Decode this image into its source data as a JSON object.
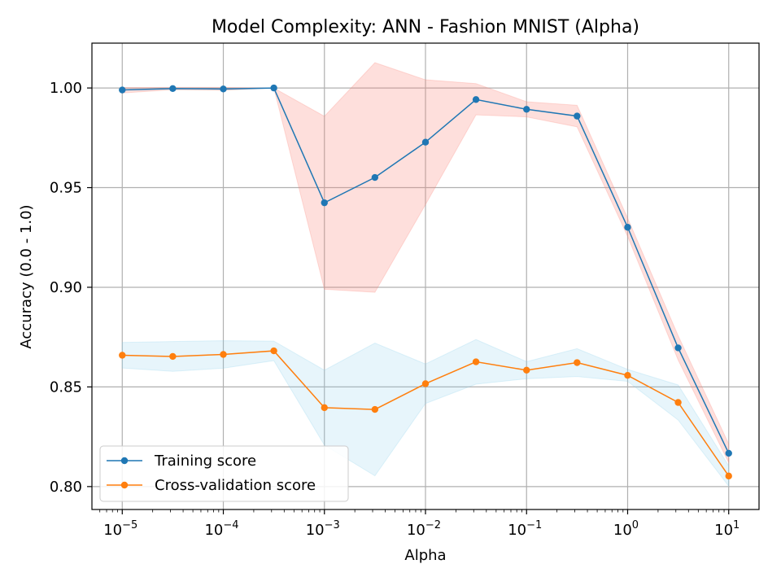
{
  "chart_data": {
    "type": "line",
    "title": "Model Complexity: ANN - Fashion MNIST (Alpha)",
    "xlabel": "Alpha",
    "ylabel": "Accuracy (0.0 - 1.0)",
    "x_scale": "log",
    "xlim_exp": [
      -5.3,
      1.3
    ],
    "ylim": [
      0.7885,
      1.0225
    ],
    "grid": true,
    "legend_position": "lower left",
    "x_tick_exponents": [
      "−5",
      "−4",
      "−3",
      "−2",
      "−1",
      "0",
      "1"
    ],
    "x_tick_base": "10",
    "y_ticks": [
      "0.80",
      "0.85",
      "0.90",
      "0.95",
      "1.00"
    ],
    "x": [
      1e-05,
      3.16e-05,
      0.0001,
      0.000316,
      0.001,
      0.00316,
      0.01,
      0.0316,
      0.1,
      0.316,
      1,
      3.16,
      10
    ],
    "series": [
      {
        "name": "Training score",
        "color": "#1f77b4",
        "band_color": "#fa8072",
        "values": [
          0.999,
          0.9997,
          0.9995,
          1.0,
          0.9424,
          0.9551,
          0.9728,
          0.9942,
          0.9893,
          0.9859,
          0.9301,
          0.8696,
          0.8167
        ],
        "band_low": [
          0.9975,
          0.9991,
          0.9988,
          1.0,
          0.899,
          0.8975,
          0.9415,
          0.9865,
          0.9855,
          0.9805,
          0.9255,
          0.8635,
          0.812
        ],
        "band_high": [
          1.0002,
          1.0003,
          1.0003,
          1.0,
          0.9858,
          1.0127,
          1.0041,
          1.0022,
          0.9931,
          0.9913,
          0.9347,
          0.8757,
          0.8214
        ]
      },
      {
        "name": "Cross-validation score",
        "color": "#ff7f0e",
        "band_color": "#87ceeb",
        "values": [
          0.8659,
          0.8653,
          0.8663,
          0.8681,
          0.8396,
          0.8387,
          0.8516,
          0.8626,
          0.8584,
          0.8622,
          0.8558,
          0.8422,
          0.8053
        ],
        "band_low": [
          0.8595,
          0.8578,
          0.8594,
          0.8632,
          0.8208,
          0.8054,
          0.8417,
          0.8514,
          0.8541,
          0.8552,
          0.8528,
          0.8334,
          0.8002
        ],
        "band_high": [
          0.8723,
          0.8728,
          0.8732,
          0.873,
          0.8584,
          0.872,
          0.8615,
          0.8738,
          0.8627,
          0.8692,
          0.8588,
          0.851,
          0.8104
        ]
      }
    ]
  }
}
